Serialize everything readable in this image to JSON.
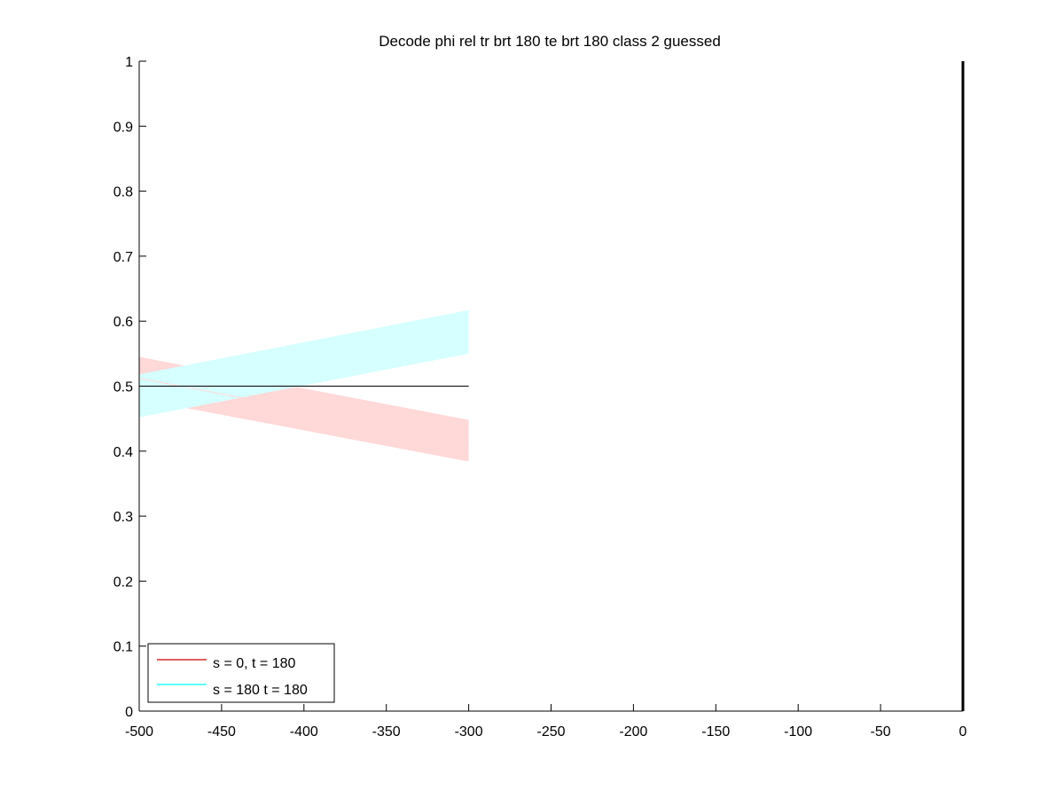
{
  "chart_data": {
    "type": "area",
    "title": "Decode phi rel tr brt 180 te brt 180  class 2 guessed",
    "xlabel": "",
    "ylabel": "",
    "xlim": [
      -500,
      0
    ],
    "ylim": [
      0,
      1
    ],
    "xticks": [
      -500,
      -450,
      -400,
      -350,
      -300,
      -250,
      -200,
      -150,
      -100,
      -50,
      0
    ],
    "yticks": [
      0,
      0.1,
      0.2,
      0.3,
      0.4,
      0.5,
      0.6,
      0.7,
      0.8,
      0.9,
      1
    ],
    "grid": false,
    "legend_location": "bottom-left",
    "reference_line": {
      "y": 0.5,
      "x": [
        -500,
        -300
      ],
      "color": "#000000"
    },
    "series": [
      {
        "name": "s = 0, t = 180",
        "color": "#cc0000",
        "fill": "#ffd8d8",
        "x": [
          -500,
          -300
        ],
        "mean": [
          0.512,
          0.416
        ],
        "lower": [
          0.48,
          0.384
        ],
        "upper": [
          0.545,
          0.448
        ]
      },
      {
        "name": "s = 180 t = 180",
        "color": "#00ffff",
        "fill": "#d6ffff",
        "x": [
          -500,
          -300
        ],
        "mean": [
          0.485,
          0.583
        ],
        "lower": [
          0.452,
          0.55
        ],
        "upper": [
          0.518,
          0.617
        ]
      }
    ]
  }
}
